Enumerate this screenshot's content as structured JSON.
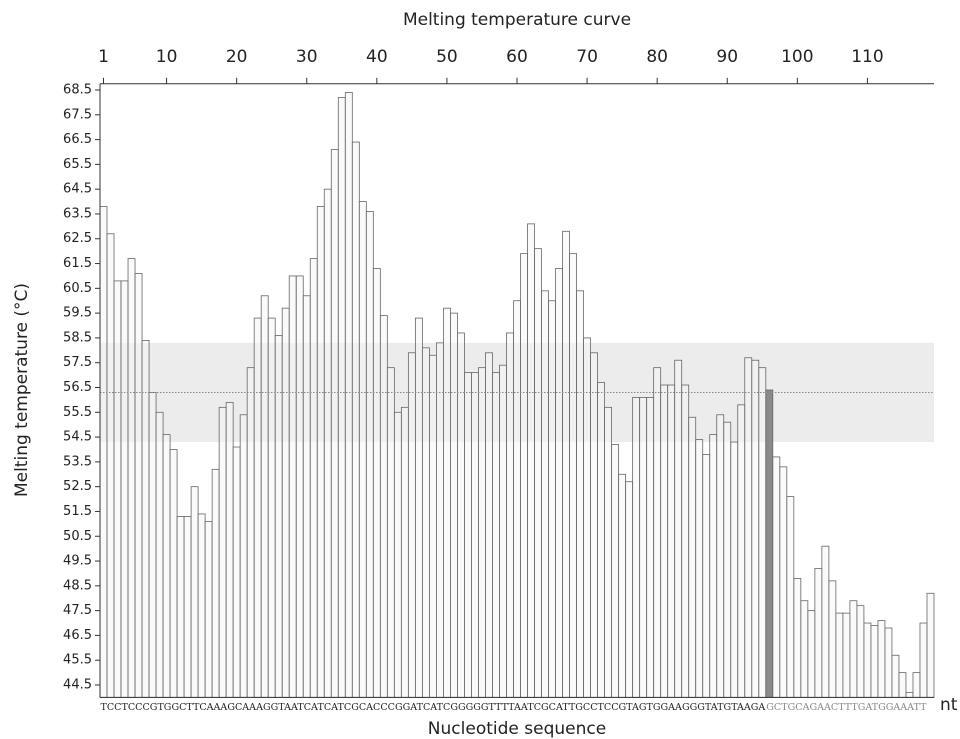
{
  "chart_data": {
    "type": "bar",
    "title": "Melting temperature curve",
    "y_label": "Melting temperature (°C)",
    "x_label": "Nucleotide sequence",
    "x_unit": "nt",
    "sequence": [
      {
        "text": "TCCTCCCGTGGCTTCAAAGCAAAGGTAATCATCATCGCACCCGGATCATCGGGGGTTTTAATCGCATTGCCTCCGTAGTGGAAGGGTATGTAAGA",
        "color": "#222222"
      },
      {
        "text": "GCTGCAGAACTTTGATGGAAATT",
        "color": "#888888"
      }
    ],
    "values": [
      63.8,
      62.7,
      60.8,
      60.8,
      61.7,
      61.1,
      58.4,
      56.3,
      55.5,
      54.6,
      54.0,
      51.3,
      51.3,
      52.5,
      51.4,
      51.1,
      53.2,
      55.7,
      55.9,
      54.1,
      55.4,
      57.3,
      59.3,
      60.2,
      59.3,
      58.6,
      59.7,
      61.0,
      61.0,
      60.2,
      61.7,
      63.8,
      64.5,
      66.1,
      68.2,
      68.4,
      66.4,
      64.0,
      63.6,
      61.3,
      59.4,
      57.3,
      55.5,
      55.7,
      57.9,
      59.3,
      58.1,
      57.8,
      58.3,
      59.7,
      59.5,
      58.7,
      57.1,
      57.1,
      57.3,
      57.9,
      57.1,
      57.4,
      58.7,
      60.0,
      61.9,
      63.1,
      62.1,
      60.4,
      60.0,
      61.3,
      62.8,
      61.9,
      60.4,
      58.5,
      57.9,
      56.7,
      55.7,
      54.2,
      53.0,
      52.7,
      56.1,
      56.1,
      56.1,
      57.3,
      56.6,
      56.6,
      57.6,
      56.6,
      55.3,
      54.4,
      53.8,
      54.6,
      55.4,
      55.1,
      54.3,
      55.8,
      57.7,
      57.6,
      57.3,
      56.4,
      53.7,
      53.3,
      52.1,
      48.8,
      47.9,
      47.5,
      49.2,
      50.1,
      48.7,
      47.4,
      47.4,
      47.9,
      47.7,
      47.0,
      46.9,
      47.1,
      46.8,
      45.7,
      45.0,
      44.2,
      45.0,
      47.0,
      48.2
    ],
    "color": "#f5f5f5",
    "edge_color": "#666666",
    "highlight_index": 95,
    "highlight_color": "#8a8a8a",
    "band": [
      54.3,
      58.3
    ],
    "band_color": "#e6e6e6",
    "reference_line": 56.3,
    "xlim": [
      0.5,
      119.5
    ],
    "xticks": [
      1,
      10,
      20,
      30,
      40,
      50,
      60,
      70,
      80,
      90,
      100,
      110
    ],
    "ylim": [
      44,
      68.75
    ],
    "yticks": [
      44.5,
      45.5,
      46.5,
      47.5,
      48.5,
      49.5,
      50.5,
      51.5,
      52.5,
      53.5,
      54.5,
      55.5,
      56.5,
      57.5,
      58.5,
      59.5,
      60.5,
      61.5,
      62.5,
      63.5,
      64.5,
      65.5,
      66.5,
      67.5,
      68.5
    ]
  }
}
